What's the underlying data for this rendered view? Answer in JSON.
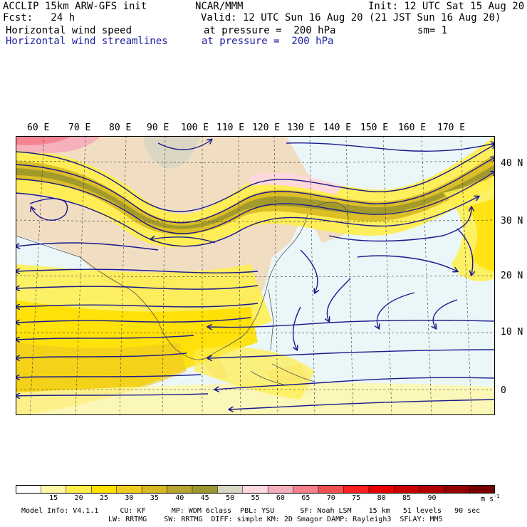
{
  "header": {
    "model": "ACCLIP 15km ARW-GFS init",
    "org": "NCAR/MMM",
    "init": "Init: 12 UTC Sat 15 Aug 20",
    "fcst": "Fcst:   24 h",
    "valid": "Valid: 12 UTC Sun 16 Aug 20 (21 JST Sun 16 Aug 20)",
    "field1": "Horizontal wind speed",
    "field1_level": "at pressure =  200 hPa",
    "smooth": "sm= 1",
    "field2": "Horizontal wind streamlines",
    "field2_level": "at pressure =  200 hPa"
  },
  "map": {
    "lon_labels": [
      "60 E",
      "70 E",
      "80 E",
      "90 E",
      "100 E",
      "110 E",
      "120 E",
      "130 E",
      "140 E",
      "150 E",
      "160 E",
      "170 E"
    ],
    "lat_labels": [
      "40 N",
      "30 N",
      "20 N",
      "10 N",
      "0"
    ],
    "streamline_color": "#1a1a8c"
  },
  "legend": {
    "colors": [
      "#ffffff",
      "#fff7a8",
      "#ffee4a",
      "#ffe000",
      "#f0cc20",
      "#d8b820",
      "#b8a430",
      "#9c962e",
      "#d8d6c4",
      "#ffd7e0",
      "#f5aebc",
      "#f4808c",
      "#f25050",
      "#f82020",
      "#e80000",
      "#cc0000",
      "#b00000",
      "#940000",
      "#780000"
    ],
    "labels": [
      "15",
      "20",
      "25",
      "30",
      "35",
      "40",
      "45",
      "50",
      "55",
      "60",
      "65",
      "70",
      "75",
      "80",
      "85",
      "90"
    ],
    "unit": "m s",
    "unit_exp": "-1"
  },
  "footer": {
    "line1": "Model Info: V4.1.1     CU: KF      MP: WDM 6class  PBL: YSU      SF: Noah LSM    15 km   51 levels   90 sec",
    "line2": "LW: RRTMG    SW: RRTMG  DIFF: simple KM: 2D Smagor DAMP: Rayleigh3  SFLAY: MM5"
  }
}
